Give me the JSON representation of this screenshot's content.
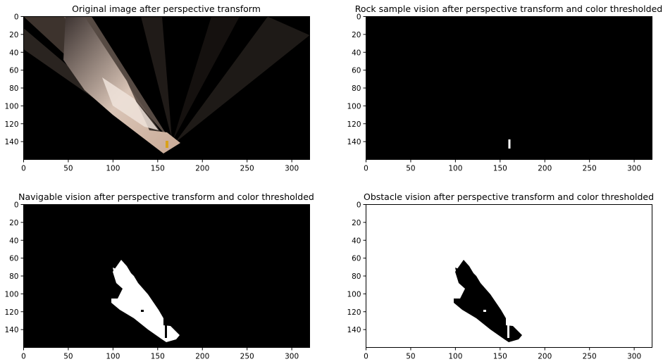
{
  "chart_data": [
    {
      "type": "image",
      "title": "Original image after perspective transform",
      "xlim": [
        0,
        320
      ],
      "ylim": [
        160,
        0
      ],
      "xticks": [
        0,
        50,
        100,
        150,
        200,
        250,
        300
      ],
      "yticks": [
        0,
        20,
        40,
        60,
        80,
        100,
        120,
        140
      ],
      "background": "#000000",
      "content": "warped camera view of rock wall and ground",
      "colors": {
        "ground": "#c9aa96",
        "ground_bright": "#efe3da",
        "wall": "#5a4d44",
        "rock_sample": "#d9a21a"
      }
    },
    {
      "type": "image",
      "title": "Rock sample vision after perspective transform and color thresholded",
      "xlim": [
        0,
        320
      ],
      "ylim": [
        160,
        0
      ],
      "xticks": [
        0,
        50,
        100,
        150,
        200,
        250,
        300
      ],
      "yticks": [
        0,
        20,
        40,
        60,
        80,
        100,
        120,
        140
      ],
      "background": "#000000",
      "mask_color": "#ffffff",
      "content": "small rock sample mask near x=160, y=138-148"
    },
    {
      "type": "image",
      "title": "Navigable vision after perspective transform and color thresholded",
      "xlim": [
        0,
        320
      ],
      "ylim": [
        160,
        0
      ],
      "xticks": [
        0,
        50,
        100,
        150,
        200,
        250,
        300
      ],
      "yticks": [
        0,
        20,
        40,
        60,
        80,
        100,
        120,
        140
      ],
      "background": "#000000",
      "mask_color": "#ffffff",
      "content": "navigable terrain mask"
    },
    {
      "type": "image",
      "title": "Obstacle vision after perspective transform and color thresholded",
      "xlim": [
        0,
        320
      ],
      "ylim": [
        160,
        0
      ],
      "xticks": [
        0,
        50,
        100,
        150,
        200,
        250,
        300
      ],
      "yticks": [
        0,
        20,
        40,
        60,
        80,
        100,
        120,
        140
      ],
      "background": "#ffffff",
      "mask_color": "#000000",
      "content": "obstacle mask (inverse of navigable)"
    }
  ]
}
